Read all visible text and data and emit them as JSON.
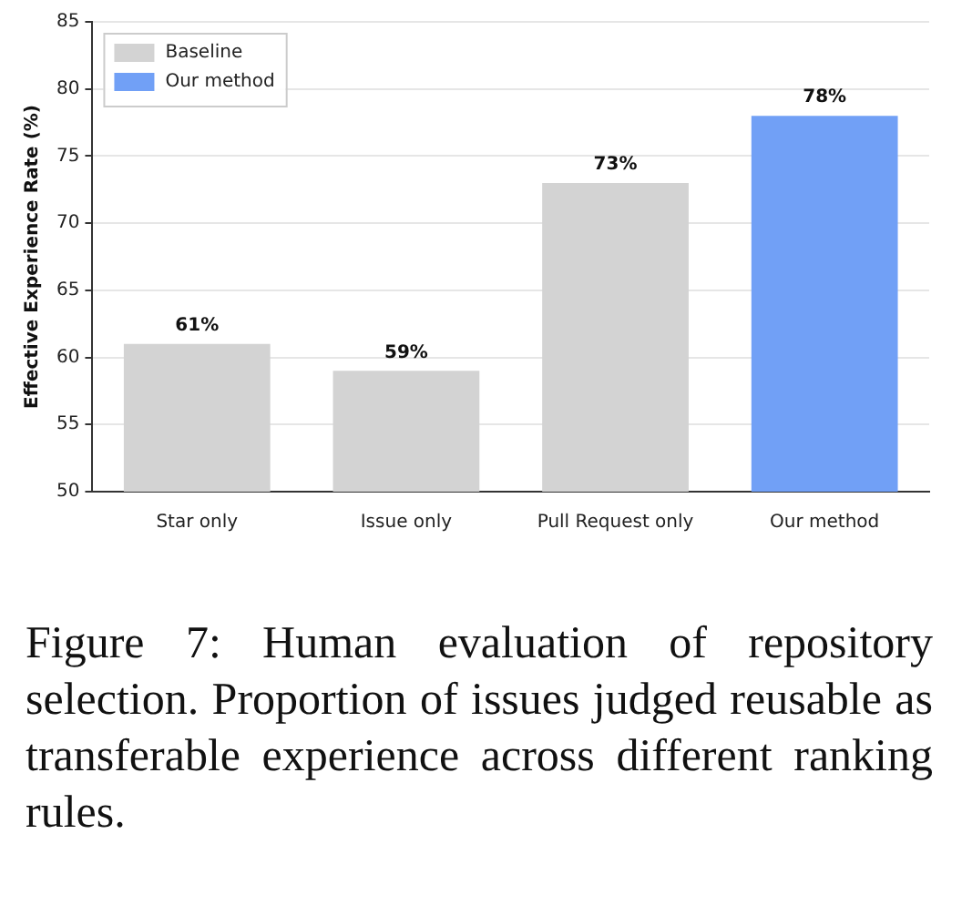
{
  "chart_data": {
    "type": "bar",
    "ylabel": "Effective Experience Rate (%)",
    "categories": [
      "Star only",
      "Issue only",
      "Pull Request only",
      "Our method"
    ],
    "series": [
      {
        "name": "Baseline",
        "color": "#d3d3d3",
        "values": [
          61,
          59,
          73,
          null
        ],
        "value_labels": [
          "61%",
          "59%",
          "73%",
          null
        ]
      },
      {
        "name": "Our method",
        "color": "#71a0f6",
        "values": [
          null,
          null,
          null,
          78
        ],
        "value_labels": [
          null,
          null,
          null,
          "78%"
        ]
      }
    ],
    "ylim": [
      50,
      85
    ],
    "yticks": [
      50,
      55,
      60,
      65,
      70,
      75,
      80,
      85
    ],
    "grid": "y",
    "legend": "top left",
    "annotations": [
      "Figure 7: Human evaluation of repository selection. Proportion of issues judged reusable as transferable experience across different ranking rules."
    ]
  }
}
